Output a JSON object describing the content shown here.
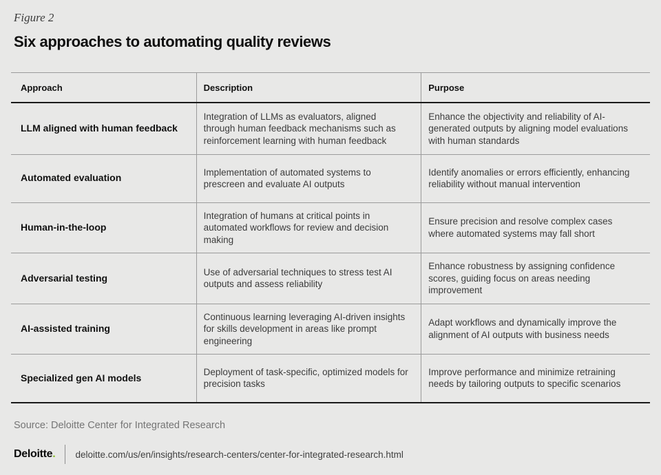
{
  "figure": {
    "label": "Figure 2",
    "title": "Six approaches to automating quality reviews"
  },
  "table": {
    "columns": [
      "Approach",
      "Description",
      "Purpose"
    ],
    "rows": [
      {
        "approach": "LLM aligned with human feedback",
        "description": "Integration of LLMs as evaluators, aligned through human feedback mechanisms such as reinforcement learning with human feedback",
        "purpose": "Enhance the objectivity and reliability of AI-generated outputs by aligning model evaluations with human standards"
      },
      {
        "approach": "Automated evaluation",
        "description": "Implementation of automated systems to prescreen and evaluate AI outputs",
        "purpose": "Identify anomalies or errors efficiently, enhancing reliability without manual intervention"
      },
      {
        "approach": "Human-in-the-loop",
        "description": "Integration of humans at critical points in automated workflows for review and decision making",
        "purpose": "Ensure precision and resolve complex cases where automated systems may fall short"
      },
      {
        "approach": "Adversarial testing",
        "description": "Use of adversarial techniques to stress test AI outputs and assess reliability",
        "purpose": "Enhance robustness by assigning confidence scores, guiding focus on areas needing improvement"
      },
      {
        "approach": "AI-assisted training",
        "description": "Continuous learning leveraging AI-driven insights for skills development in areas like prompt engineering",
        "purpose": "Adapt workflows and dynamically improve the alignment of AI outputs with business needs"
      },
      {
        "approach": "Specialized gen AI models",
        "description": "Deployment of task-specific, optimized models for precision tasks",
        "purpose": "Improve performance and minimize retraining needs by tailoring outputs to specific scenarios"
      }
    ]
  },
  "source": "Source: Deloitte Center for Integrated Research",
  "footer": {
    "brand": "Deloitte",
    "brand_dot": ".",
    "url": "deloitte.com/us/en/insights/research-centers/center-for-integrated-research.html"
  },
  "colors": {
    "background": "#e8e8e7",
    "accent_green": "#86bc25",
    "rule_dark": "#1a1a1a",
    "rule_light": "#9b9b9b"
  }
}
